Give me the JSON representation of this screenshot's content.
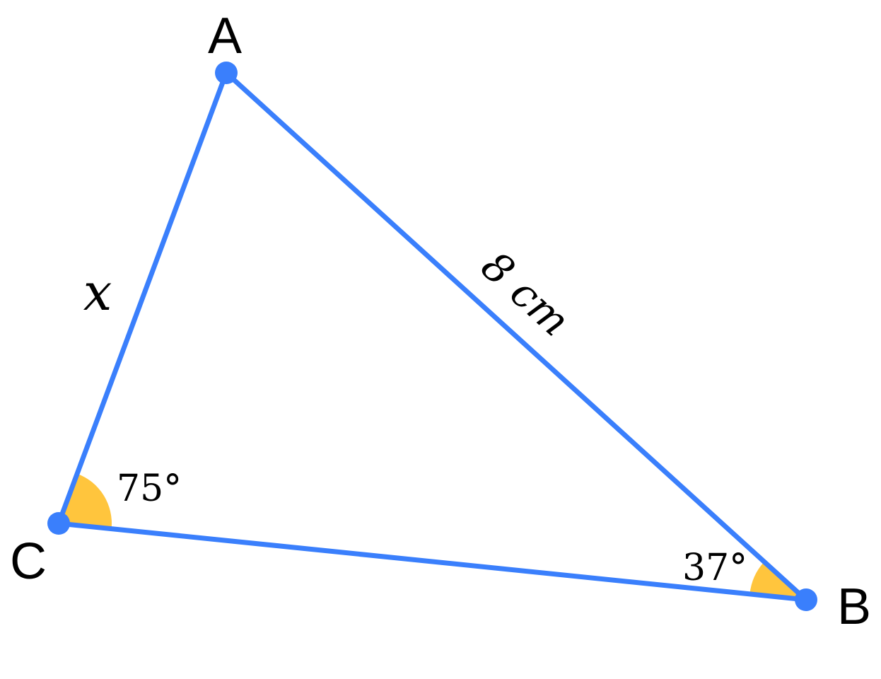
{
  "vertices": {
    "A": "A",
    "B": "B",
    "C": "C"
  },
  "sides": {
    "AC": "x",
    "AB": "8 cm"
  },
  "angles": {
    "C": "75°",
    "B": "37°"
  },
  "colors": {
    "line": "#3a7ffc",
    "point": "#3a7ffc",
    "angle_fill": "#ffc53d",
    "text": "#000000"
  }
}
